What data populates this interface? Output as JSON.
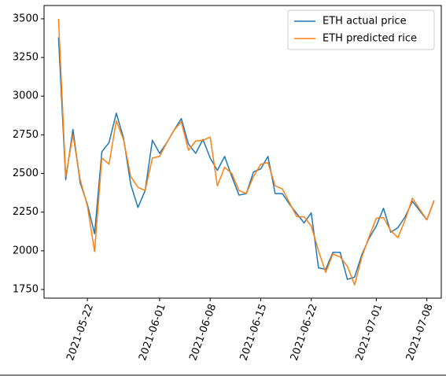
{
  "chart_data": {
    "type": "line",
    "x": [
      "2021-05-18",
      "2021-05-19",
      "2021-05-20",
      "2021-05-21",
      "2021-05-22",
      "2021-05-23",
      "2021-05-24",
      "2021-05-25",
      "2021-05-26",
      "2021-05-27",
      "2021-05-28",
      "2021-05-29",
      "2021-05-30",
      "2021-05-31",
      "2021-06-01",
      "2021-06-02",
      "2021-06-03",
      "2021-06-04",
      "2021-06-05",
      "2021-06-06",
      "2021-06-07",
      "2021-06-08",
      "2021-06-09",
      "2021-06-10",
      "2021-06-11",
      "2021-06-12",
      "2021-06-13",
      "2021-06-14",
      "2021-06-15",
      "2021-06-16",
      "2021-06-17",
      "2021-06-18",
      "2021-06-19",
      "2021-06-20",
      "2021-06-21",
      "2021-06-22",
      "2021-06-23",
      "2021-06-24",
      "2021-06-25",
      "2021-06-26",
      "2021-06-27",
      "2021-06-28",
      "2021-06-29",
      "2021-06-30",
      "2021-07-01",
      "2021-07-02",
      "2021-07-03",
      "2021-07-04",
      "2021-07-05",
      "2021-07-06",
      "2021-07-07",
      "2021-07-08",
      "2021-07-09"
    ],
    "series": [
      {
        "name": "ETH actual price",
        "color": "#1f77b4",
        "values": [
          3380,
          2460,
          2785,
          2440,
          2300,
          2110,
          2640,
          2700,
          2890,
          2730,
          2430,
          2280,
          2390,
          2715,
          2630,
          2700,
          2780,
          2855,
          2690,
          2630,
          2720,
          2600,
          2520,
          2610,
          2480,
          2360,
          2370,
          2510,
          2530,
          2610,
          2370,
          2370,
          2300,
          2240,
          2180,
          2245,
          1890,
          1880,
          1990,
          1990,
          1815,
          1830,
          1975,
          2080,
          2160,
          2275,
          2120,
          2150,
          2220,
          2320,
          2260,
          2200,
          2325
        ]
      },
      {
        "name": "ETH predicted rice",
        "color": "#ff7f0e",
        "values": [
          3500,
          2480,
          2750,
          2460,
          2290,
          1995,
          2600,
          2560,
          2840,
          2720,
          2480,
          2410,
          2390,
          2600,
          2610,
          2700,
          2780,
          2835,
          2650,
          2710,
          2715,
          2735,
          2420,
          2540,
          2500,
          2390,
          2370,
          2480,
          2560,
          2570,
          2420,
          2400,
          2310,
          2220,
          2220,
          2160,
          2000,
          1860,
          1980,
          1960,
          1900,
          1780,
          1960,
          2090,
          2210,
          2215,
          2130,
          2085,
          2200,
          2340,
          2270,
          2200,
          2325
        ]
      }
    ],
    "xlim": [
      "2021-05-16",
      "2021-07-10"
    ],
    "xticks": [
      "2021-05-22",
      "2021-06-01",
      "2021-06-08",
      "2021-06-15",
      "2021-06-22",
      "2021-07-01",
      "2021-07-08"
    ],
    "ylim": [
      1694,
      3586
    ],
    "yticks": [
      1750,
      2000,
      2250,
      2500,
      2750,
      3000,
      3250,
      3500
    ],
    "legend": "upper right"
  }
}
